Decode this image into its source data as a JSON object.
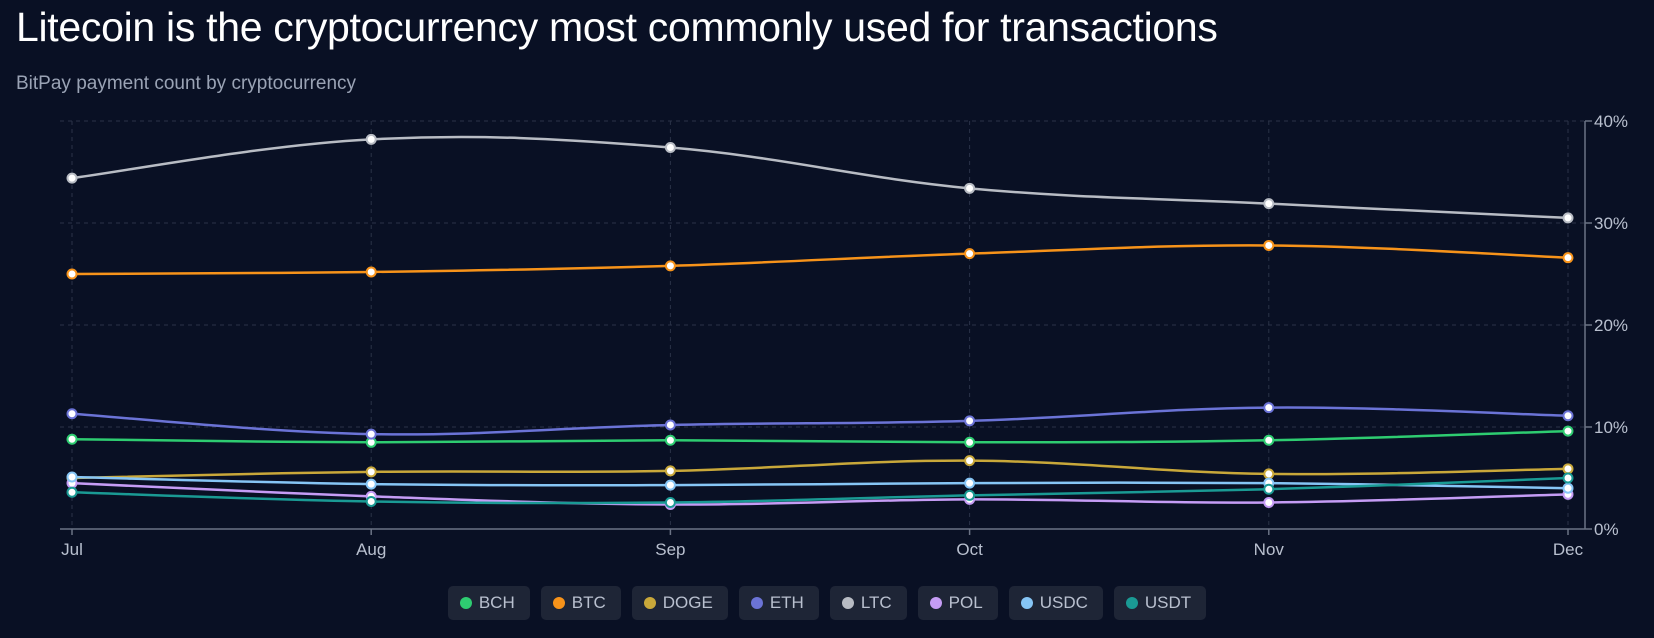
{
  "header": {
    "title": "Litecoin is the cryptocurrency most commonly used for transactions",
    "subtitle": "BitPay payment count by cryptocurrency"
  },
  "colors": {
    "background": "#091024",
    "axis": "#6b7385",
    "grid": "#2a3247",
    "tick_text": "#b9c0cf"
  },
  "chart_data": {
    "type": "line",
    "title": "Litecoin is the cryptocurrency most commonly used for transactions",
    "subtitle": "BitPay payment count by cryptocurrency",
    "categories": [
      "Jul",
      "Aug",
      "Sep",
      "Oct",
      "Nov",
      "Dec"
    ],
    "y_axis_side": "right",
    "ylim": [
      0,
      40
    ],
    "y_ticks": [
      0,
      10,
      20,
      30,
      40
    ],
    "y_tick_labels": [
      "0%",
      "10%",
      "20%",
      "30%",
      "40%"
    ],
    "grid": true,
    "legend_position": "bottom-center",
    "series": [
      {
        "name": "BCH",
        "color": "#2ecc71",
        "values": [
          8.8,
          8.5,
          8.7,
          8.5,
          8.7,
          9.6
        ]
      },
      {
        "name": "BTC",
        "color": "#f7931a",
        "values": [
          25.0,
          25.2,
          25.8,
          27.0,
          27.8,
          26.6
        ]
      },
      {
        "name": "DOGE",
        "color": "#c9a83a",
        "values": [
          5.0,
          5.6,
          5.7,
          6.7,
          5.4,
          5.9
        ]
      },
      {
        "name": "ETH",
        "color": "#6b73d6",
        "values": [
          11.3,
          9.3,
          10.2,
          10.6,
          11.9,
          11.1
        ]
      },
      {
        "name": "LTC",
        "color": "#b8bcc4",
        "values": [
          34.4,
          38.2,
          37.4,
          33.4,
          31.9,
          30.5
        ]
      },
      {
        "name": "POL",
        "color": "#c59cf5",
        "values": [
          4.5,
          3.2,
          2.4,
          2.9,
          2.6,
          3.4
        ]
      },
      {
        "name": "USDC",
        "color": "#86c5f5",
        "values": [
          5.1,
          4.4,
          4.3,
          4.5,
          4.5,
          4.0
        ]
      },
      {
        "name": "USDT",
        "color": "#1a9a94",
        "values": [
          3.6,
          2.7,
          2.6,
          3.3,
          3.9,
          5.0
        ]
      }
    ]
  }
}
